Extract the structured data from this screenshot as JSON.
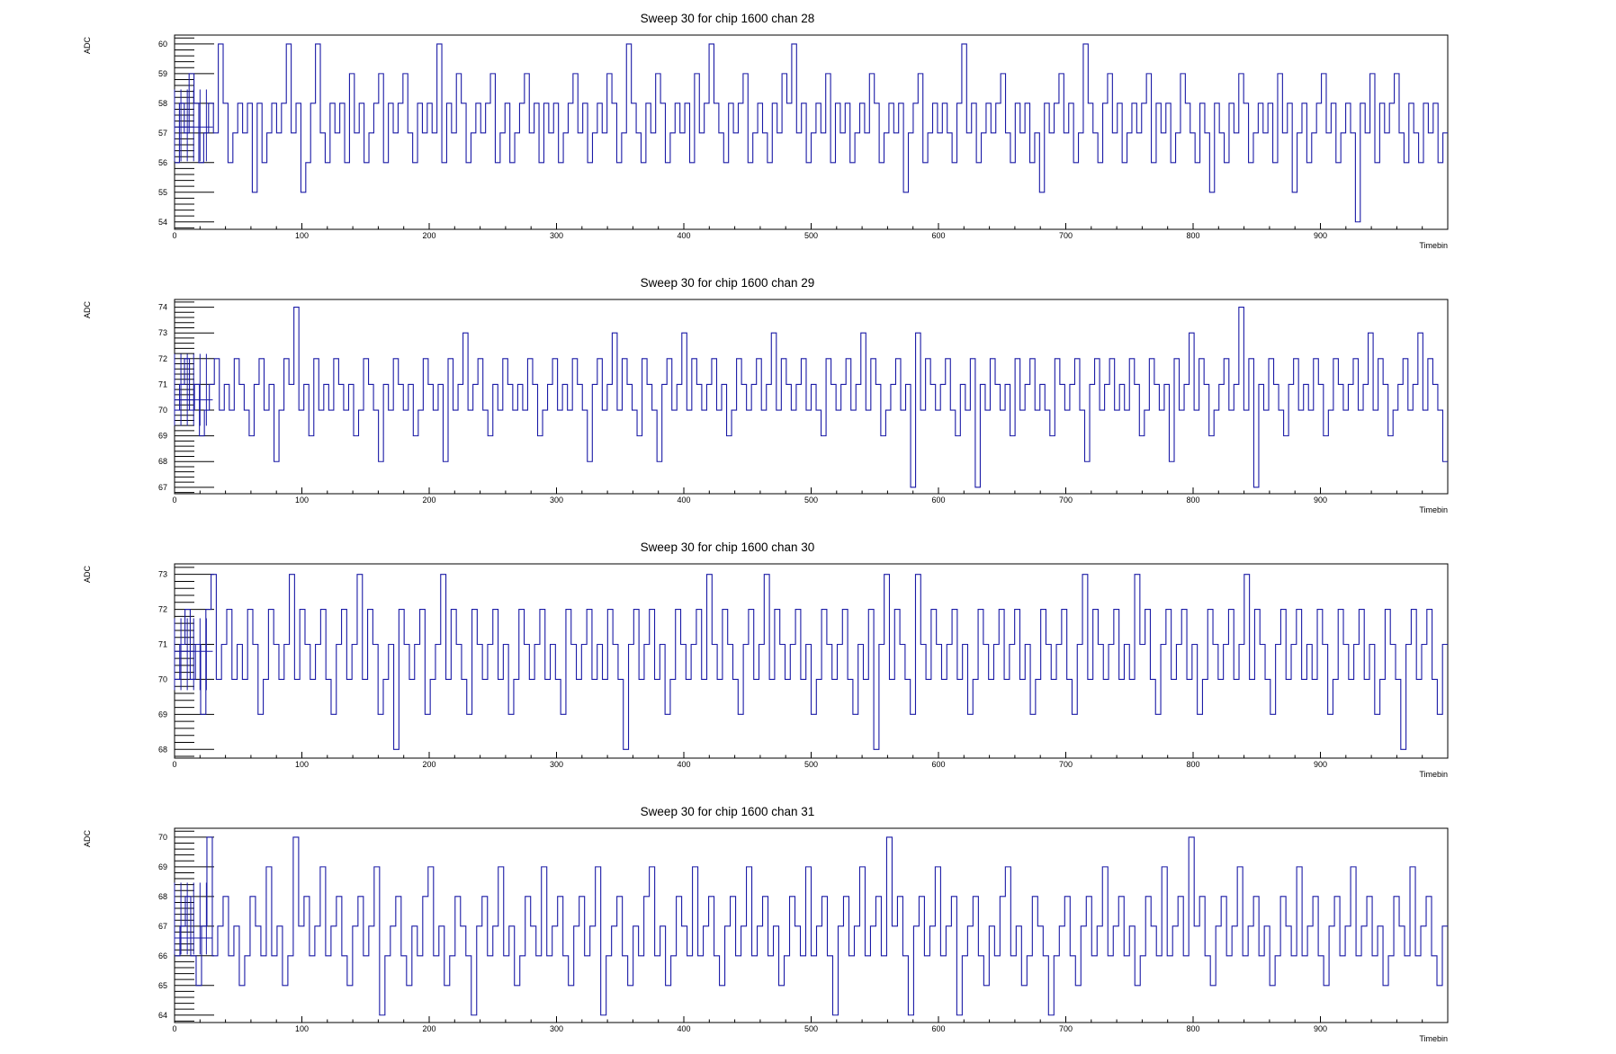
{
  "chart_data": [
    {
      "type": "line",
      "step": true,
      "title": "Sweep 30 for chip 1600 chan 28",
      "xlabel": "Timebin",
      "ylabel": "ADC",
      "xlim": [
        0,
        1000
      ],
      "ylim": [
        53.75,
        60.3
      ],
      "xticks": [
        "0",
        "100",
        "200",
        "300",
        "400",
        "500",
        "600",
        "700",
        "800",
        "900"
      ],
      "yticks": [
        "54",
        "55",
        "56",
        "57",
        "58",
        "59",
        "60"
      ],
      "series": [
        {
          "baseline": 57.2,
          "values": [
            56,
            58,
            57,
            59,
            58,
            56,
            57,
            58,
            57,
            60,
            58,
            56,
            57,
            58,
            57,
            58,
            55,
            58,
            56,
            57,
            58,
            57,
            58,
            60,
            57,
            58,
            55,
            56,
            58,
            60,
            57,
            56,
            58,
            57,
            58,
            56,
            59,
            57,
            58,
            56,
            57,
            58,
            59,
            56,
            58,
            57,
            58,
            59,
            57,
            56,
            58,
            57,
            58,
            57,
            60,
            56,
            58,
            57,
            59,
            58,
            56,
            57,
            58,
            57,
            58,
            59,
            56,
            57,
            58,
            56,
            57,
            58,
            59,
            57,
            58,
            56,
            58,
            57,
            58,
            56,
            57,
            58,
            59,
            57,
            58,
            56,
            57,
            58,
            57,
            59,
            58,
            56,
            57,
            60,
            58,
            57,
            56,
            58,
            57,
            59,
            58,
            56,
            57,
            58,
            57,
            58,
            56,
            59,
            57,
            58,
            60,
            58,
            57,
            56,
            58,
            57,
            58,
            59,
            56,
            57,
            58,
            57,
            56,
            58,
            57,
            59,
            58,
            60,
            57,
            58,
            56,
            57,
            58,
            57,
            59,
            56,
            58,
            57,
            58,
            56,
            57,
            58,
            57,
            59,
            58,
            56,
            57,
            58,
            57,
            58,
            55,
            57,
            58,
            59,
            56,
            57,
            58,
            57,
            58,
            57,
            56,
            58,
            60,
            57,
            58,
            56,
            57,
            58,
            57,
            58,
            59,
            57,
            56,
            58,
            57,
            58,
            56,
            57,
            55,
            58,
            57,
            58,
            59,
            57,
            58,
            56,
            57,
            60,
            58,
            57,
            56,
            58,
            59,
            57,
            58,
            56,
            57,
            58,
            57,
            58,
            59,
            56,
            58,
            57,
            58,
            56,
            57,
            59,
            58,
            57,
            56,
            58,
            57,
            55,
            58,
            57,
            56,
            58,
            57,
            59,
            58,
            56,
            57,
            58,
            57,
            58,
            56,
            59,
            57,
            58,
            55,
            57,
            58,
            56,
            57,
            58,
            59,
            57,
            58,
            56,
            57,
            58,
            57,
            54,
            58,
            57,
            59,
            56,
            58,
            57,
            58,
            59,
            57,
            56,
            58,
            57,
            56,
            58,
            57,
            58,
            56,
            57
          ]
        }
      ]
    },
    {
      "type": "line",
      "step": true,
      "title": "Sweep 30 for chip 1600 chan 29",
      "xlabel": "Timebin",
      "ylabel": "ADC",
      "xlim": [
        0,
        1000
      ],
      "ylim": [
        66.75,
        74.3
      ],
      "xticks": [
        "0",
        "100",
        "200",
        "300",
        "400",
        "500",
        "600",
        "700",
        "800",
        "900"
      ],
      "yticks": [
        "67",
        "68",
        "69",
        "70",
        "71",
        "72",
        "73",
        "74"
      ],
      "series": [
        {
          "baseline": 70.4,
          "values": [
            70,
            71,
            72,
            70,
            71,
            69,
            70,
            71,
            72,
            70,
            71,
            70,
            72,
            71,
            70,
            69,
            71,
            72,
            70,
            71,
            68,
            70,
            72,
            71,
            74,
            70,
            71,
            69,
            72,
            70,
            71,
            70,
            72,
            71,
            70,
            71,
            69,
            70,
            72,
            71,
            70,
            68,
            71,
            70,
            72,
            71,
            70,
            71,
            69,
            70,
            72,
            71,
            70,
            71,
            68,
            72,
            70,
            71,
            73,
            70,
            71,
            72,
            70,
            69,
            71,
            70,
            72,
            71,
            70,
            71,
            70,
            72,
            71,
            69,
            70,
            71,
            72,
            70,
            71,
            70,
            72,
            71,
            70,
            68,
            71,
            72,
            70,
            71,
            73,
            70,
            72,
            71,
            70,
            69,
            72,
            71,
            70,
            68,
            71,
            72,
            70,
            71,
            73,
            70,
            72,
            71,
            70,
            71,
            72,
            70,
            71,
            69,
            70,
            72,
            71,
            70,
            71,
            72,
            70,
            71,
            73,
            70,
            72,
            71,
            70,
            71,
            72,
            70,
            71,
            70,
            69,
            72,
            71,
            70,
            71,
            72,
            70,
            71,
            73,
            70,
            72,
            71,
            69,
            70,
            71,
            72,
            70,
            71,
            67,
            73,
            70,
            72,
            71,
            70,
            71,
            72,
            70,
            69,
            71,
            70,
            72,
            67,
            71,
            70,
            72,
            71,
            70,
            71,
            69,
            72,
            70,
            71,
            72,
            70,
            71,
            70,
            69,
            72,
            71,
            70,
            71,
            72,
            70,
            68,
            71,
            72,
            70,
            71,
            72,
            70,
            71,
            70,
            72,
            71,
            69,
            70,
            72,
            71,
            70,
            71,
            68,
            72,
            70,
            71,
            73,
            70,
            72,
            71,
            69,
            70,
            71,
            72,
            70,
            71,
            74,
            70,
            72,
            67,
            71,
            70,
            72,
            71,
            70,
            69,
            71,
            72,
            70,
            71,
            70,
            72,
            71,
            69,
            70,
            72,
            71,
            70,
            71,
            72,
            70,
            71,
            73,
            70,
            72,
            71,
            69,
            70,
            71,
            72,
            70,
            71,
            73,
            70,
            72,
            71,
            70,
            68
          ]
        }
      ]
    },
    {
      "type": "line",
      "step": true,
      "title": "Sweep 30 for chip 1600 chan 30",
      "xlabel": "Timebin",
      "ylabel": "ADC",
      "xlim": [
        0,
        1000
      ],
      "ylim": [
        67.75,
        73.3
      ],
      "xticks": [
        "0",
        "100",
        "200",
        "300",
        "400",
        "500",
        "600",
        "700",
        "800",
        "900"
      ],
      "yticks": [
        "68",
        "69",
        "70",
        "71",
        "72",
        "73"
      ],
      "series": [
        {
          "baseline": 70.8,
          "values": [
            70,
            71,
            72,
            70,
            71,
            69,
            72,
            73,
            70,
            71,
            72,
            70,
            71,
            70,
            72,
            71,
            69,
            70,
            72,
            71,
            70,
            71,
            73,
            70,
            72,
            71,
            70,
            71,
            72,
            70,
            69,
            71,
            72,
            70,
            71,
            73,
            70,
            72,
            71,
            69,
            70,
            71,
            68,
            72,
            71,
            70,
            71,
            72,
            69,
            70,
            71,
            73,
            70,
            72,
            71,
            70,
            69,
            72,
            71,
            70,
            71,
            72,
            70,
            71,
            69,
            70,
            72,
            71,
            70,
            71,
            72,
            70,
            71,
            70,
            69,
            72,
            71,
            70,
            71,
            72,
            70,
            71,
            70,
            72,
            71,
            70,
            68,
            71,
            72,
            70,
            71,
            72,
            70,
            71,
            69,
            70,
            72,
            71,
            70,
            71,
            72,
            70,
            73,
            71,
            70,
            72,
            71,
            70,
            69,
            71,
            72,
            70,
            71,
            73,
            70,
            72,
            71,
            70,
            71,
            72,
            70,
            71,
            69,
            70,
            72,
            71,
            70,
            71,
            72,
            70,
            69,
            71,
            70,
            72,
            68,
            71,
            73,
            70,
            72,
            71,
            70,
            69,
            73,
            71,
            70,
            72,
            71,
            70,
            71,
            72,
            70,
            71,
            69,
            70,
            72,
            71,
            70,
            71,
            72,
            70,
            71,
            72,
            70,
            71,
            69,
            70,
            72,
            71,
            70,
            71,
            72,
            70,
            69,
            71,
            73,
            70,
            72,
            71,
            70,
            71,
            72,
            70,
            71,
            70,
            73,
            71,
            72,
            70,
            69,
            71,
            72,
            70,
            71,
            72,
            70,
            71,
            69,
            70,
            72,
            71,
            70,
            71,
            72,
            70,
            71,
            73,
            70,
            72,
            71,
            70,
            69,
            71,
            72,
            70,
            71,
            72,
            70,
            71,
            70,
            72,
            71,
            69,
            70,
            72,
            71,
            70,
            71,
            72,
            70,
            71,
            69,
            70,
            72,
            71,
            70,
            68,
            71,
            72,
            70,
            71,
            72,
            70,
            69,
            71
          ]
        }
      ]
    },
    {
      "type": "line",
      "step": true,
      "title": "Sweep 30 for chip 1600 chan 31",
      "xlabel": "Timebin",
      "ylabel": "ADC",
      "xlim": [
        0,
        1000
      ],
      "ylim": [
        63.75,
        70.3
      ],
      "xticks": [
        "0",
        "100",
        "200",
        "300",
        "400",
        "500",
        "600",
        "700",
        "800",
        "900"
      ],
      "yticks": [
        "64",
        "65",
        "66",
        "67",
        "68",
        "69",
        "70"
      ],
      "series": [
        {
          "baseline": 66.6,
          "values": [
            66,
            67,
            68,
            66,
            65,
            67,
            70,
            66,
            67,
            68,
            66,
            67,
            65,
            66,
            68,
            67,
            66,
            69,
            66,
            67,
            65,
            66,
            70,
            67,
            68,
            66,
            67,
            69,
            66,
            67,
            68,
            66,
            65,
            67,
            68,
            66,
            67,
            69,
            64,
            66,
            67,
            68,
            66,
            65,
            67,
            66,
            68,
            69,
            66,
            67,
            65,
            66,
            68,
            67,
            66,
            64,
            67,
            68,
            66,
            67,
            69,
            66,
            67,
            65,
            66,
            68,
            67,
            66,
            69,
            66,
            67,
            68,
            66,
            65,
            67,
            68,
            66,
            67,
            69,
            64,
            66,
            67,
            68,
            66,
            65,
            67,
            66,
            68,
            69,
            66,
            67,
            65,
            66,
            68,
            67,
            66,
            69,
            66,
            67,
            68,
            66,
            65,
            67,
            68,
            66,
            67,
            69,
            66,
            67,
            68,
            66,
            67,
            65,
            66,
            68,
            67,
            66,
            69,
            66,
            67,
            68,
            66,
            64,
            67,
            68,
            66,
            67,
            69,
            66,
            67,
            68,
            66,
            70,
            67,
            68,
            66,
            64,
            67,
            68,
            66,
            67,
            69,
            66,
            67,
            68,
            64,
            66,
            67,
            68,
            66,
            65,
            67,
            66,
            68,
            69,
            66,
            67,
            65,
            66,
            68,
            67,
            66,
            64,
            66,
            67,
            68,
            66,
            65,
            67,
            68,
            66,
            67,
            69,
            66,
            67,
            68,
            66,
            67,
            65,
            66,
            68,
            67,
            66,
            69,
            66,
            67,
            68,
            66,
            70,
            67,
            68,
            66,
            65,
            67,
            68,
            66,
            67,
            69,
            66,
            67,
            68,
            66,
            67,
            65,
            66,
            68,
            67,
            66,
            69,
            66,
            67,
            68,
            66,
            65,
            67,
            68,
            66,
            67,
            69,
            66,
            67,
            68,
            66,
            67,
            65,
            66,
            68,
            67,
            66,
            69,
            66,
            67,
            68,
            66,
            65,
            67
          ]
        }
      ]
    }
  ]
}
